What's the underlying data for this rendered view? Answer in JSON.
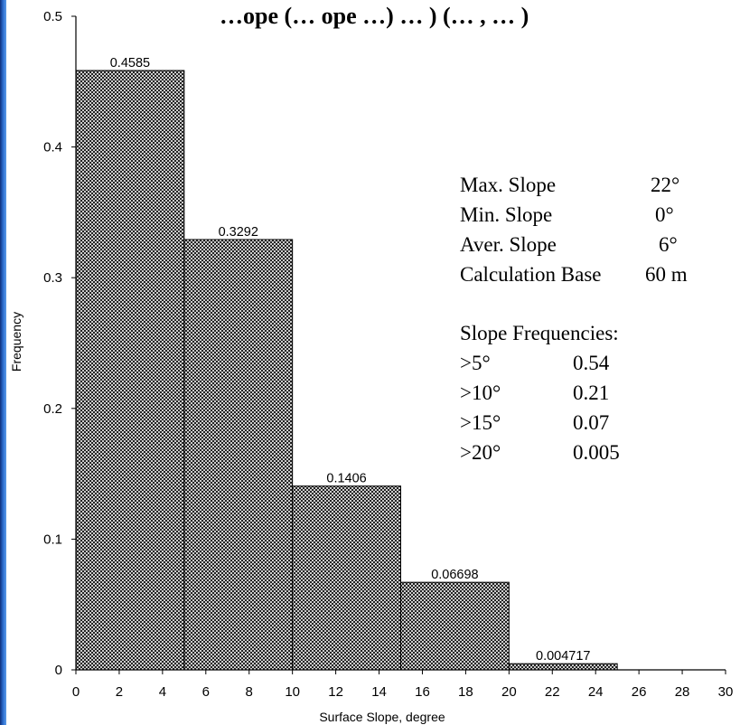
{
  "chart_data": {
    "type": "bar",
    "title": "…ope (… ope …) … ) (… , … )",
    "xlabel": "Surface Slope, degree",
    "ylabel": "Frequency",
    "xlim": [
      0,
      30
    ],
    "ylim": [
      0,
      0.5
    ],
    "x_ticks": [
      0,
      2,
      4,
      6,
      8,
      10,
      12,
      14,
      16,
      18,
      20,
      22,
      24,
      26,
      28,
      30
    ],
    "y_ticks": [
      0,
      0.1,
      0.2,
      0.3,
      0.4,
      0.5
    ],
    "bins": [
      {
        "from": 0,
        "to": 5,
        "value": 0.4585,
        "label": "0.4585"
      },
      {
        "from": 5,
        "to": 10,
        "value": 0.3292,
        "label": "0.3292"
      },
      {
        "from": 10,
        "to": 15,
        "value": 0.1406,
        "label": "0.1406"
      },
      {
        "from": 15,
        "to": 20,
        "value": 0.06698,
        "label": "0.06698"
      },
      {
        "from": 20,
        "to": 25,
        "value": 0.004717,
        "label": "0.004717"
      },
      {
        "from": 25,
        "to": 30,
        "value": 0,
        "label": ""
      }
    ],
    "bar_pattern": "crosshatch",
    "grid": false
  },
  "stats": {
    "rows": [
      {
        "label": "Max. Slope",
        "value": "22°"
      },
      {
        "label": "Min. Slope",
        "value": "0°"
      },
      {
        "label": "Aver. Slope",
        "value": "6°"
      },
      {
        "label": "Calculation Base",
        "value": "60 m"
      }
    ],
    "freq_heading": "Slope Frequencies:",
    "freq_rows": [
      {
        "label": ">5°",
        "value": "0.54"
      },
      {
        "label": ">10°",
        "value": "0.21"
      },
      {
        "label": ">15°",
        "value": "0.07"
      },
      {
        "label": ">20°",
        "value": "0.005"
      }
    ]
  }
}
